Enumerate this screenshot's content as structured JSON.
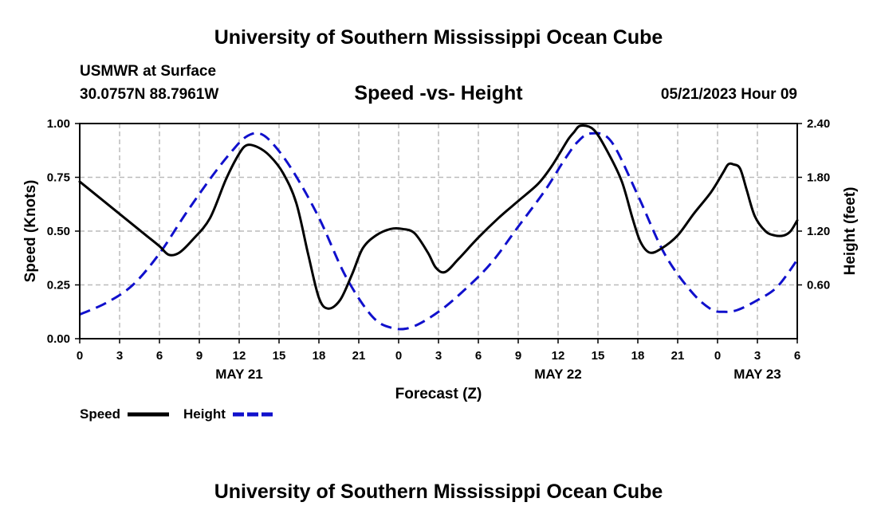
{
  "page_title": "University of Southern Mississippi Ocean Cube",
  "footer_title": "University of Southern Mississippi Ocean Cube",
  "station": {
    "name": "USMWR at Surface",
    "coords": "30.0757N  88.7961W"
  },
  "timestamp": "05/21/2023 Hour 09",
  "chart_data": {
    "type": "line",
    "title": "Speed -vs- Height",
    "xlabel": "Forecast (Z)",
    "ylabel": "Speed (Knots)",
    "y2label": "Height (feet)",
    "x_range": [
      0,
      54
    ],
    "ylim": [
      0,
      1.0
    ],
    "y2lim": [
      0,
      2.4
    ],
    "x_ticks": [
      0,
      3,
      6,
      9,
      12,
      15,
      18,
      21,
      24,
      27,
      30,
      33,
      36,
      39,
      42,
      45,
      48,
      51,
      54
    ],
    "x_tick_labels": [
      "0",
      "3",
      "6",
      "9",
      "12",
      "15",
      "18",
      "21",
      "0",
      "3",
      "6",
      "9",
      "12",
      "15",
      "18",
      "21",
      "0",
      "3",
      "6"
    ],
    "y_ticks": [
      0,
      0.25,
      0.5,
      0.75,
      1.0
    ],
    "y_tick_labels": [
      "0.00",
      "0.25",
      "0.50",
      "0.75",
      "1.00"
    ],
    "y2_ticks": [
      0.6,
      1.2,
      1.8,
      2.4
    ],
    "y2_tick_labels": [
      "0.60",
      "1.20",
      "1.80",
      "2.40"
    ],
    "date_labels": [
      {
        "x": 12,
        "text": "MAY 21"
      },
      {
        "x": 36,
        "text": "MAY 22"
      },
      {
        "x": 51,
        "text": "MAY 23"
      }
    ],
    "grid": true,
    "series": [
      {
        "name": "Speed",
        "color": "#000000",
        "style": "solid",
        "axis": "left",
        "x": [
          0,
          1,
          2,
          3,
          4,
          5,
          6,
          6.7,
          7.5,
          8.5,
          9.8,
          11,
          12,
          12.6,
          13.4,
          14.3,
          15.3,
          16.3,
          17.2,
          18,
          18.7,
          19.6,
          20.5,
          21.3,
          22.3,
          23.4,
          24.3,
          25.2,
          26.2,
          26.8,
          27.5,
          28.5,
          30,
          31.5,
          33,
          34.5,
          35.5,
          36.3,
          36.8,
          37.2,
          37.7,
          38.7,
          39.8,
          40.8,
          41.6,
          42.2,
          42.9,
          43.8,
          45,
          46.2,
          47.5,
          48.4,
          48.8,
          49.2,
          49.7,
          50.2,
          50.8,
          51.6,
          52.3,
          53,
          53.5,
          54
        ],
        "values": [
          0.73,
          0.68,
          0.63,
          0.58,
          0.53,
          0.48,
          0.43,
          0.39,
          0.4,
          0.46,
          0.56,
          0.74,
          0.86,
          0.9,
          0.89,
          0.85,
          0.77,
          0.63,
          0.39,
          0.19,
          0.14,
          0.18,
          0.3,
          0.42,
          0.48,
          0.51,
          0.51,
          0.49,
          0.4,
          0.33,
          0.31,
          0.37,
          0.47,
          0.56,
          0.64,
          0.72,
          0.8,
          0.88,
          0.93,
          0.96,
          0.99,
          0.97,
          0.86,
          0.73,
          0.56,
          0.45,
          0.4,
          0.42,
          0.48,
          0.58,
          0.68,
          0.77,
          0.81,
          0.81,
          0.79,
          0.69,
          0.57,
          0.5,
          0.48,
          0.48,
          0.5,
          0.55
        ]
      },
      {
        "name": "Height",
        "color": "#1010cc",
        "style": "dashed",
        "axis": "right",
        "x": [
          0,
          2,
          4,
          6,
          8,
          10,
          11.5,
          12.5,
          13.5,
          14.5,
          16,
          18,
          20,
          22,
          23.5,
          25,
          27,
          29,
          31,
          33,
          35,
          36.5,
          37.5,
          38.5,
          40,
          42,
          44,
          46,
          47.5,
          48.5,
          49.5,
          51,
          52.5,
          54
        ],
        "values": [
          0.27,
          0.4,
          0.6,
          0.95,
          1.4,
          1.82,
          2.1,
          2.25,
          2.29,
          2.18,
          1.88,
          1.35,
          0.7,
          0.25,
          0.12,
          0.13,
          0.3,
          0.55,
          0.85,
          1.25,
          1.65,
          2.0,
          2.2,
          2.29,
          2.2,
          1.6,
          0.95,
          0.53,
          0.33,
          0.3,
          0.32,
          0.43,
          0.58,
          0.88
        ]
      }
    ],
    "legend": {
      "position": "bottom-left",
      "items": [
        "Speed",
        "Height"
      ]
    }
  }
}
